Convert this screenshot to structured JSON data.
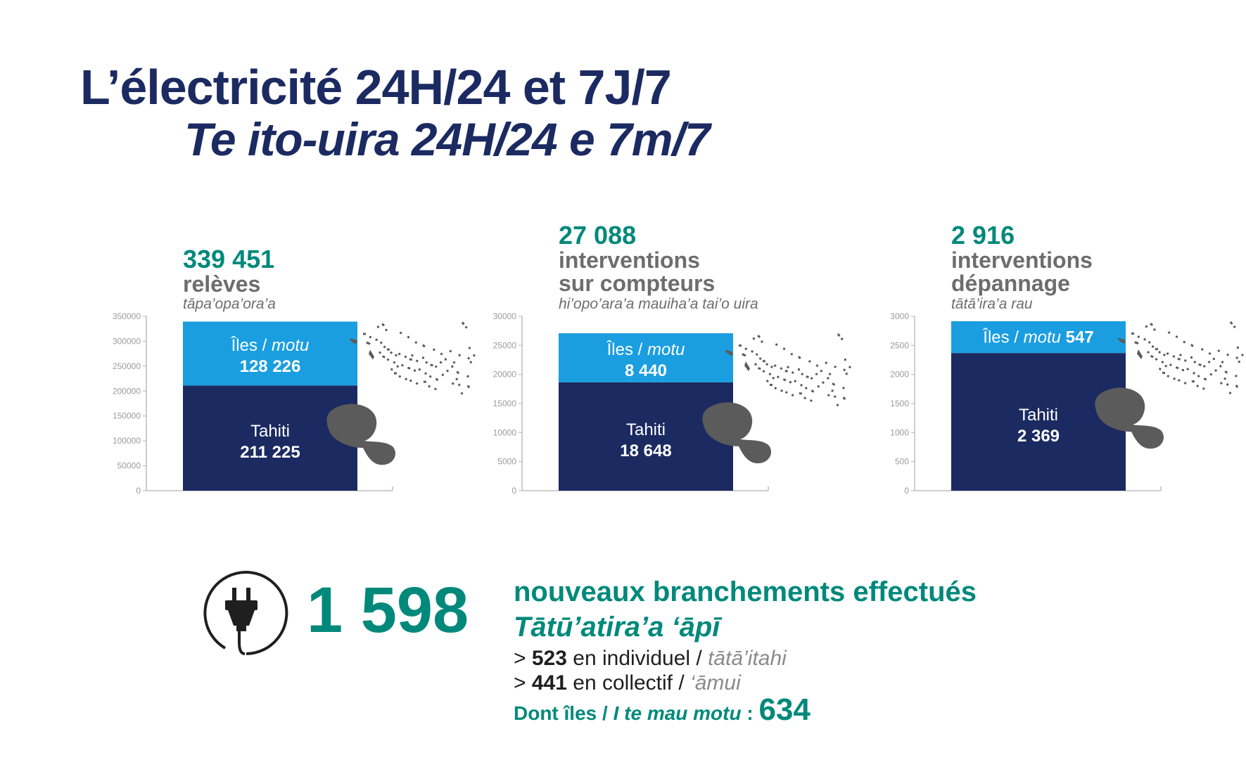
{
  "title": "L’électricité 24H/24 et 7J/7",
  "subtitle": "Te ito-uira 24H/24 e 7m/7",
  "colors": {
    "navy": "#1b2a61",
    "lightblue": "#1a9ee0",
    "teal": "#00897b",
    "gray": "#6d6d6d",
    "map": "#5b5b5b"
  },
  "chart_data": [
    {
      "type": "bar",
      "stacked": true,
      "total": "339 451",
      "label": "relèves",
      "sublabel": "tāpa’opa’ora’a",
      "yticks": [
        "350000",
        "300000",
        "250000",
        "200000",
        "150000",
        "100000",
        "50000",
        "0"
      ],
      "ylim": [
        0,
        350000
      ],
      "series": [
        {
          "name": "Tahiti",
          "value": 211225,
          "value_label": "211 225"
        },
        {
          "name": "Îles",
          "name_alt": "motu",
          "value": 128226,
          "value_label": "128 226"
        }
      ]
    },
    {
      "type": "bar",
      "stacked": true,
      "total": "27 088",
      "label": "interventions",
      "label2": "sur compteurs",
      "sublabel": "hi’opo’ara’a mauiha’a tai’o uira",
      "yticks": [
        "30000",
        "25000",
        "20000",
        "15000",
        "10000",
        "5000",
        "0"
      ],
      "ylim": [
        0,
        30000
      ],
      "series": [
        {
          "name": "Tahiti",
          "value": 18648,
          "value_label": "18 648"
        },
        {
          "name": "Îles",
          "name_alt": "motu",
          "value": 8440,
          "value_label": "8 440"
        }
      ]
    },
    {
      "type": "bar",
      "stacked": true,
      "total": "2 916",
      "label": "interventions",
      "label2": "dépannage",
      "sublabel": "tātā’ira’a rau",
      "yticks": [
        "3000",
        "2500",
        "2000",
        "1500",
        "1000",
        "500",
        "0"
      ],
      "ylim": [
        0,
        3000
      ],
      "series": [
        {
          "name": "Tahiti",
          "value": 2369,
          "value_label": "2 369"
        },
        {
          "name": "Îles",
          "name_alt": "motu",
          "value": 547,
          "value_label": "547"
        }
      ]
    }
  ],
  "connections": {
    "icon": "plug-icon",
    "total": "1 598",
    "title": "nouveaux branchements effectués",
    "subtitle": "Tātū’atira’a ‘āpī",
    "line1_prefix": ">",
    "line1_value": "523",
    "line1_text": "en individuel /",
    "line1_alt": "tātā’itahi",
    "line2_prefix": ">",
    "line2_value": "441",
    "line2_text": "en collectif /",
    "line2_alt": "‘āmui",
    "islands_label": "Dont îles /",
    "islands_alt": "I te mau motu",
    "islands_colon": ":",
    "islands_value": "634"
  }
}
